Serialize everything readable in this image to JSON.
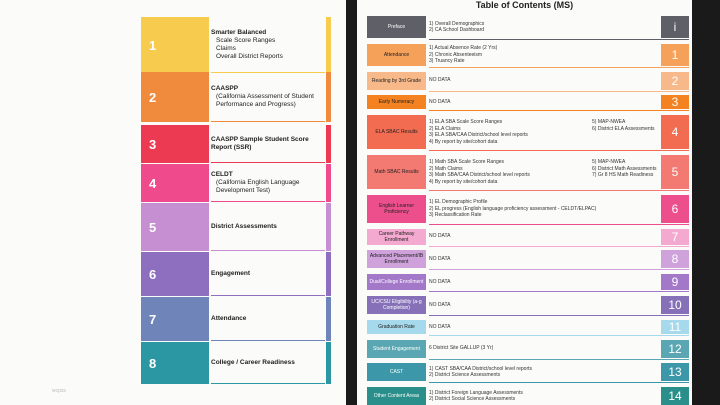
{
  "left": {
    "watermark": "wcpss",
    "items": [
      {
        "num": "1",
        "title": "Smarter Balanced",
        "subs": [
          "Scale Score Ranges",
          "Claims",
          "Overall District Reports"
        ],
        "color": "#f7cb4e"
      },
      {
        "num": "2",
        "title": "CAASPP",
        "subs": [
          "(California Assessment of Student Performance and Progress)"
        ],
        "color": "#f08a3d"
      },
      {
        "num": "3",
        "title": "CAASPP Sample Student Score Report (SSR)",
        "subs": [],
        "color": "#ec3a53"
      },
      {
        "num": "4",
        "title": "CELDT",
        "subs": [
          "(California English Language Development Test)"
        ],
        "color": "#ee4a8c"
      },
      {
        "num": "5",
        "title": "District Assessments",
        "subs": [],
        "color": "#c58fd1"
      },
      {
        "num": "6",
        "title": "Engagement",
        "subs": [],
        "color": "#8e6fbf"
      },
      {
        "num": "7",
        "title": "Attendance",
        "subs": [],
        "color": "#6f84b9"
      },
      {
        "num": "8",
        "title": "College / Career Readiness",
        "subs": [],
        "color": "#2a97a3"
      }
    ]
  },
  "right": {
    "title": "Table of Contents (MS)",
    "rows": [
      {
        "label": "Preface",
        "items": [
          "1) Overall Demographics",
          "2) CA School Dashboard"
        ],
        "num": "i",
        "color": "#5f5f67",
        "dark": true
      },
      {
        "label": "Attendance",
        "items": [
          "1) Actual Absence Rate (2 Yrs)",
          "2) Chronic Absenteeism",
          "3) Truancy Rate"
        ],
        "num": "1",
        "color": "#f6a15a"
      },
      {
        "label": "Reading by 3rd Grade",
        "items": [
          "NO DATA"
        ],
        "num": "2",
        "color": "#f7b98a"
      },
      {
        "label": "Early Numeracy",
        "items": [
          "NO DATA"
        ],
        "num": "3",
        "color": "#f58220"
      },
      {
        "label": "ELA SBAC Results",
        "items": [
          "1) ELA SBA Scale Score Ranges",
          "2) ELA Claims",
          "3) ELA SBA/CAA District/school level reports",
          "4) By report by site/cohort data"
        ],
        "items2": [
          "5) MAP-NWEA",
          "6) District ELA Assessments"
        ],
        "num": "4",
        "color": "#f26c52"
      },
      {
        "label": "Math SBAC Results",
        "items": [
          "1) Math SBA Scale Score Ranges",
          "2) Math Claims",
          "3) Math SBA/CAA District/school level reports",
          "4) By report by site/cohort data"
        ],
        "items2": [
          "5) MAP-NWEA",
          "6) District Math Assessments",
          "7) Gr 8 HS Math Readiness"
        ],
        "num": "5",
        "color": "#f27a72"
      },
      {
        "label": "English Learner Proficiency",
        "items": [
          "1) EL Demographic Profile",
          "2) EL progress (English language proficiency assessment - CELDT/ELPAC)",
          "3) Reclassification Rate"
        ],
        "num": "6",
        "color": "#ec4f8b"
      },
      {
        "label": "Career Pathway Enrollment",
        "items": [
          "NO DATA"
        ],
        "num": "7",
        "color": "#f4a9d0"
      },
      {
        "label": "Advanced Placement/IB Enrollment",
        "items": [
          "NO DATA"
        ],
        "num": "8",
        "color": "#cfa2dc"
      },
      {
        "label": "Dual/College Enrollment",
        "items": [
          "NO DATA"
        ],
        "num": "9",
        "color": "#a378c8",
        "dark": true
      },
      {
        "label": "UC/CSU Eligibility (a-g Completion)",
        "items": [
          "NO DATA"
        ],
        "num": "10",
        "color": "#8671b8",
        "dark": true
      },
      {
        "label": "Graduation Rate",
        "items": [
          "NO DATA"
        ],
        "num": "11",
        "color": "#a6d9ec"
      },
      {
        "label": "Student Engagement",
        "items": [
          "6 District Site GALLUP (3 Yr)"
        ],
        "num": "12",
        "color": "#5aa7b3",
        "dark": true
      },
      {
        "label": "CAST",
        "items": [
          "1) CAST SBA/CAA District/school level reports",
          "2) District Science Assessments"
        ],
        "num": "13",
        "color": "#3c98a8",
        "dark": true
      },
      {
        "label": "Other Content Areas",
        "items": [
          "1) District Foreign Language Assessments",
          "2) District Social Science Assessments"
        ],
        "num": "14",
        "color": "#2a8f8a",
        "dark": true
      }
    ]
  }
}
